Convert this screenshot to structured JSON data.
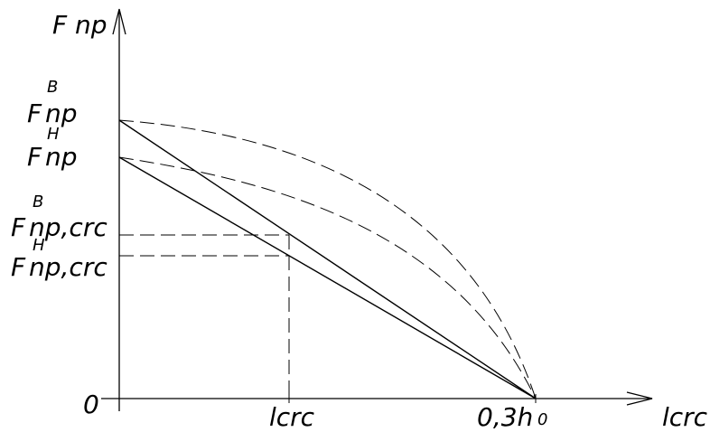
{
  "axes": {
    "y_label": "F np",
    "x_label": "lcrc",
    "origin_label": "0"
  },
  "y_ticks": {
    "f_upper_main": "F",
    "f_upper_sub": "np",
    "f_upper_sup": "B",
    "f_lower_main": "F",
    "f_lower_sub": "np",
    "f_lower_sup": "H",
    "f_crc_upper_main": "F",
    "f_crc_upper_sub": "np,crc",
    "f_crc_upper_sup": "B",
    "f_crc_lower_main": "F",
    "f_crc_lower_sub": "np,crc",
    "f_crc_lower_sup": "H"
  },
  "x_ticks": {
    "lcrc": "lcrc",
    "end": "0,3h",
    "end_sub": "0"
  },
  "curves": {
    "upper_straight": "Straight line from F np B to 0,3h0",
    "lower_straight": "Straight line from F np H to 0,3h0",
    "upper_dashed": "Dashed curve from F np B to 0,3h0",
    "lower_dashed": "Dashed curve from F np H to 0,3h0"
  }
}
